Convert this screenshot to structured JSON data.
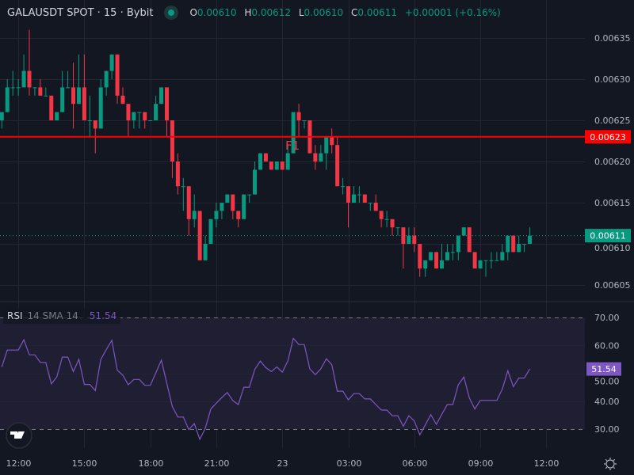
{
  "header": {
    "symbol": "GALAUSDT SPOT · 15 · Bybit",
    "status_color": "#089981",
    "open_label": "O",
    "open": "0.00610",
    "high_label": "H",
    "high": "0.00612",
    "low_label": "L",
    "low": "0.00610",
    "close_label": "C",
    "close": "0.00611",
    "change": "+0.00001 (+0.16%)"
  },
  "rsi_legend": {
    "name": "RSI",
    "params": "14 SMA 14",
    "value": "51.54"
  },
  "annotation_text": "F1",
  "price_axis": {
    "ticks": [
      "0.00635",
      "0.00630",
      "0.00625",
      "0.00620",
      "0.00615",
      "0.00610",
      "0.00605"
    ],
    "horizontal_line_label": "0.00623",
    "last_price_label": "0.00611"
  },
  "rsi_axis": {
    "ticks": [
      "70.00",
      "60.00",
      "50.00",
      "40.00",
      "30.00"
    ],
    "current_label": "51.54"
  },
  "time_axis": {
    "ticks": [
      "12:00",
      "15:00",
      "18:00",
      "21:00",
      "23",
      "03:00",
      "06:00",
      "09:00",
      "12:00"
    ]
  },
  "colors": {
    "background": "#131722",
    "up": "#089981",
    "down": "#f23645",
    "hline": "#ff0000",
    "rsi": "#7e57c2",
    "grid": "#232632"
  },
  "icons": {
    "logo": "tradingview-logo",
    "settings": "settings-gear-icon"
  },
  "chart_data": [
    {
      "type": "candlestick",
      "title": "GALAUSDT SPOT · 15 · Bybit",
      "ylim": [
        0.00603,
        0.006382
      ],
      "horizontal_line": 0.00623,
      "last_price": 0.00611,
      "grid": true,
      "ohlc": [
        [
          0.00625,
          0.00626,
          0.00624,
          0.00626
        ],
        [
          0.00626,
          0.0063,
          0.00626,
          0.00629
        ],
        [
          0.00629,
          0.00631,
          0.00628,
          0.00629
        ],
        [
          0.00629,
          0.0063,
          0.00628,
          0.00629
        ],
        [
          0.00629,
          0.00633,
          0.00629,
          0.00631
        ],
        [
          0.00631,
          0.00636,
          0.00628,
          0.00629
        ],
        [
          0.00629,
          0.00629,
          0.00628,
          0.00629
        ],
        [
          0.00629,
          0.0063,
          0.00628,
          0.00628
        ],
        [
          0.00628,
          0.00629,
          0.00628,
          0.00628
        ],
        [
          0.00628,
          0.00628,
          0.00625,
          0.00625
        ],
        [
          0.00625,
          0.00626,
          0.00625,
          0.00626
        ],
        [
          0.00626,
          0.00631,
          0.00626,
          0.00629
        ],
        [
          0.00629,
          0.00631,
          0.00629,
          0.00629
        ],
        [
          0.00629,
          0.00632,
          0.00624,
          0.00627
        ],
        [
          0.00627,
          0.00633,
          0.00627,
          0.00629
        ],
        [
          0.00629,
          0.00633,
          0.00625,
          0.00625
        ],
        [
          0.00625,
          0.00628,
          0.00623,
          0.00625
        ],
        [
          0.00625,
          0.00625,
          0.00621,
          0.00624
        ],
        [
          0.00624,
          0.0063,
          0.00624,
          0.00629
        ],
        [
          0.00629,
          0.00631,
          0.00628,
          0.00631
        ],
        [
          0.00631,
          0.00633,
          0.0063,
          0.00633
        ],
        [
          0.00633,
          0.00633,
          0.00627,
          0.00628
        ],
        [
          0.00628,
          0.00629,
          0.00627,
          0.00627
        ],
        [
          0.00627,
          0.00627,
          0.00623,
          0.00625
        ],
        [
          0.00625,
          0.00626,
          0.00624,
          0.00626
        ],
        [
          0.00626,
          0.00626,
          0.00624,
          0.00626
        ],
        [
          0.00626,
          0.00626,
          0.00624,
          0.00625
        ],
        [
          0.00625,
          0.00625,
          0.00625,
          0.00625
        ],
        [
          0.00625,
          0.00628,
          0.00625,
          0.00627
        ],
        [
          0.00627,
          0.00629,
          0.00627,
          0.00629
        ],
        [
          0.00629,
          0.00629,
          0.00623,
          0.00625
        ],
        [
          0.00625,
          0.00625,
          0.00618,
          0.0062
        ],
        [
          0.0062,
          0.00621,
          0.00616,
          0.00617
        ],
        [
          0.00617,
          0.00618,
          0.00614,
          0.00617
        ],
        [
          0.00617,
          0.00617,
          0.00611,
          0.00613
        ],
        [
          0.00613,
          0.00616,
          0.00612,
          0.00614
        ],
        [
          0.00614,
          0.00614,
          0.00608,
          0.00608
        ],
        [
          0.00608,
          0.00611,
          0.00608,
          0.0061
        ],
        [
          0.0061,
          0.00613,
          0.0061,
          0.00613
        ],
        [
          0.00613,
          0.00615,
          0.00612,
          0.00614
        ],
        [
          0.00614,
          0.00615,
          0.00613,
          0.00615
        ],
        [
          0.00615,
          0.00616,
          0.00615,
          0.00616
        ],
        [
          0.00616,
          0.00616,
          0.00613,
          0.00614
        ],
        [
          0.00614,
          0.00614,
          0.00612,
          0.00613
        ],
        [
          0.00613,
          0.00616,
          0.00613,
          0.00616
        ],
        [
          0.00616,
          0.00616,
          0.00615,
          0.00616
        ],
        [
          0.00616,
          0.0062,
          0.00616,
          0.00619
        ],
        [
          0.00619,
          0.00621,
          0.00619,
          0.00621
        ],
        [
          0.00621,
          0.00621,
          0.0062,
          0.0062
        ],
        [
          0.0062,
          0.0062,
          0.00619,
          0.00619
        ],
        [
          0.00619,
          0.0062,
          0.00619,
          0.0062
        ],
        [
          0.0062,
          0.0062,
          0.00619,
          0.00619
        ],
        [
          0.00619,
          0.00622,
          0.00619,
          0.00621
        ],
        [
          0.00621,
          0.00626,
          0.00621,
          0.00626
        ],
        [
          0.00626,
          0.00627,
          0.00623,
          0.00625
        ],
        [
          0.00625,
          0.00625,
          0.00624,
          0.00625
        ],
        [
          0.00625,
          0.00625,
          0.00621,
          0.00621
        ],
        [
          0.00621,
          0.00622,
          0.00619,
          0.0062
        ],
        [
          0.0062,
          0.00622,
          0.0062,
          0.00621
        ],
        [
          0.00621,
          0.00623,
          0.00619,
          0.00623
        ],
        [
          0.00623,
          0.00624,
          0.00621,
          0.00622
        ],
        [
          0.00622,
          0.00623,
          0.00617,
          0.00617
        ],
        [
          0.00617,
          0.00618,
          0.00616,
          0.00617
        ],
        [
          0.00617,
          0.00617,
          0.00612,
          0.00615
        ],
        [
          0.00615,
          0.00617,
          0.00615,
          0.00616
        ],
        [
          0.00616,
          0.00617,
          0.00615,
          0.00616
        ],
        [
          0.00616,
          0.00616,
          0.00615,
          0.00615
        ],
        [
          0.00615,
          0.00615,
          0.00614,
          0.00615
        ],
        [
          0.00615,
          0.00616,
          0.00614,
          0.00614
        ],
        [
          0.00614,
          0.00614,
          0.00612,
          0.00613
        ],
        [
          0.00613,
          0.00614,
          0.00612,
          0.00613
        ],
        [
          0.00613,
          0.00613,
          0.00611,
          0.00612
        ],
        [
          0.00612,
          0.00612,
          0.00611,
          0.00612
        ],
        [
          0.00612,
          0.00612,
          0.00607,
          0.0061
        ],
        [
          0.0061,
          0.00612,
          0.0061,
          0.00611
        ],
        [
          0.00611,
          0.00612,
          0.00609,
          0.0061
        ],
        [
          0.0061,
          0.0061,
          0.00606,
          0.00607
        ],
        [
          0.00607,
          0.00608,
          0.00606,
          0.00608
        ],
        [
          0.00608,
          0.00609,
          0.00608,
          0.00609
        ],
        [
          0.00609,
          0.00609,
          0.00607,
          0.00607
        ],
        [
          0.00607,
          0.0061,
          0.00607,
          0.00608
        ],
        [
          0.00608,
          0.0061,
          0.00608,
          0.00609
        ],
        [
          0.00609,
          0.0061,
          0.00608,
          0.00609
        ],
        [
          0.00609,
          0.00611,
          0.00608,
          0.00611
        ],
        [
          0.00611,
          0.00612,
          0.00611,
          0.00612
        ],
        [
          0.00612,
          0.00612,
          0.00609,
          0.00609
        ],
        [
          0.00609,
          0.00609,
          0.00607,
          0.00607
        ],
        [
          0.00607,
          0.00608,
          0.00607,
          0.00608
        ],
        [
          0.00608,
          0.00608,
          0.00606,
          0.00608
        ],
        [
          0.00608,
          0.00609,
          0.00607,
          0.00608
        ],
        [
          0.00608,
          0.00609,
          0.00608,
          0.00608
        ],
        [
          0.00608,
          0.0061,
          0.00608,
          0.00609
        ],
        [
          0.00609,
          0.00611,
          0.00608,
          0.00611
        ],
        [
          0.00611,
          0.00611,
          0.00609,
          0.00609
        ],
        [
          0.00609,
          0.00611,
          0.00609,
          0.0061
        ],
        [
          0.0061,
          0.0061,
          0.00609,
          0.0061
        ],
        [
          0.0061,
          0.00612,
          0.0061,
          0.00611
        ]
      ]
    },
    {
      "type": "line",
      "title": "RSI 14 SMA 14",
      "ylim": [
        24.7,
        75.5
      ],
      "bands": [
        30,
        70
      ],
      "values": [
        52.3,
        58.3,
        58.3,
        58.3,
        62,
        56.6,
        56.6,
        53.9,
        53.9,
        46.2,
        48.7,
        55.8,
        55.8,
        50.6,
        55,
        46,
        46,
        43.8,
        55,
        58.5,
        61.8,
        51.1,
        49.3,
        45.9,
        47.8,
        47.8,
        45.7,
        45.7,
        50.1,
        54.7,
        46.4,
        38.1,
        34.3,
        34.3,
        29.8,
        32,
        26.3,
        30.3,
        37.2,
        39.3,
        41.3,
        43.1,
        40.2,
        38.8,
        45,
        45,
        51.4,
        54.4,
        52,
        50.6,
        52.3,
        50.4,
        54.4,
        62.5,
        60.3,
        60.3,
        51.6,
        49.5,
        51.6,
        55.2,
        53.1,
        43.6,
        43.6,
        40.5,
        42.7,
        42.7,
        40.8,
        40.8,
        38.8,
        36.8,
        36.8,
        34.8,
        34.8,
        31,
        34.8,
        32.9,
        27.9,
        31.5,
        35.2,
        31.7,
        35.3,
        38.8,
        38.8,
        45.9,
        48.7,
        41.2,
        37.2,
        40.3,
        40.3,
        40.3,
        40.3,
        44.3,
        50.9,
        45.2,
        48.3,
        48.3,
        51.54
      ]
    }
  ]
}
